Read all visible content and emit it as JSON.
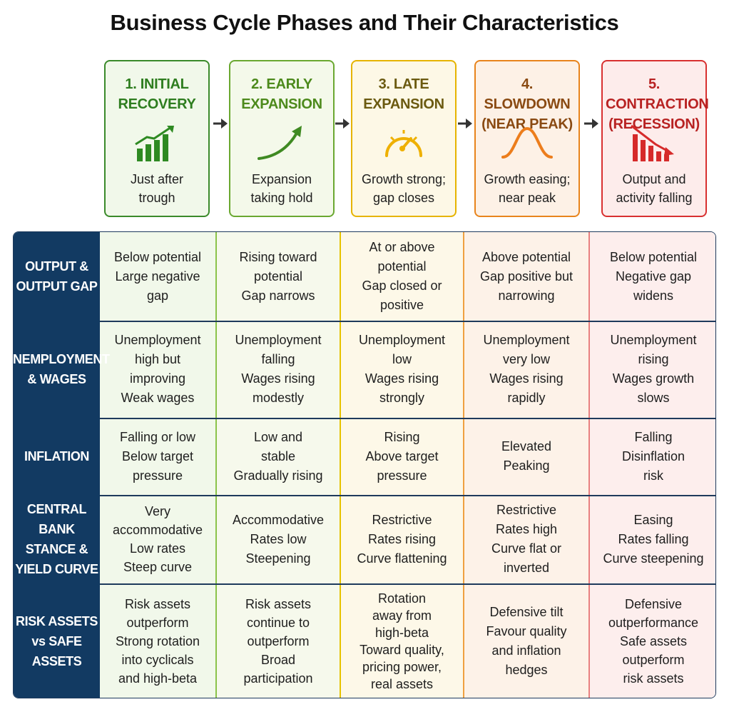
{
  "title": "Business Cycle Phases and Their Characteristics",
  "colors": {
    "green_dark": "#3a8a2a",
    "green_light": "#6aa830",
    "yellow": "#e6b400",
    "orange": "#e8841c",
    "red": "#d83030",
    "navy": "#123a62"
  },
  "phases": [
    {
      "title_line1": "1. INITIAL",
      "title_line2": "RECOVERY",
      "icon": "rising-bars-icon",
      "desc_line1": "Just after",
      "desc_line2": "trough"
    },
    {
      "title_line1": "2. EARLY",
      "title_line2": "EXPANSION",
      "icon": "upward-curve-icon",
      "desc_line1": "Expansion",
      "desc_line2": "taking hold"
    },
    {
      "title_line1": "3. LATE",
      "title_line2": "EXPANSION",
      "icon": "gauge-icon",
      "desc_line1": "Growth strong;",
      "desc_line2": "gap closes"
    },
    {
      "title_line1": "4. SLOWDOWN",
      "title_line2": "(NEAR PEAK)",
      "icon": "bell-curve-icon",
      "desc_line1": "Growth easing;",
      "desc_line2": "near peak"
    },
    {
      "title_line1": "5. CONTRACTION",
      "title_line2": "(RECESSION)",
      "icon": "falling-bars-icon",
      "desc_line1": "Output and",
      "desc_line2": "activity falling"
    }
  ],
  "rows": [
    {
      "header": "OUTPUT &\nOUTPUT GAP",
      "cells": [
        "Below potential\nLarge negative\ngap",
        "Rising toward\npotential\nGap narrows",
        "At or above\npotential\nGap closed or\npositive",
        "Above potential\nGap positive but\nnarrowing",
        "Below potential\nNegative gap\nwidens"
      ]
    },
    {
      "header": "UNEMPLOYMENT\n& WAGES",
      "cells": [
        "Unemployment\nhigh but\nimproving\nWeak wages",
        "Unemployment\nfalling\nWages rising\nmodestly",
        "Unemployment\nlow\nWages rising\nstrongly",
        "Unemployment\nvery low\nWages rising\nrapidly",
        "Unemployment\nrising\nWages growth\nslows"
      ]
    },
    {
      "header": "INFLATION",
      "cells": [
        "Falling or low\nBelow target\npressure",
        "Low and\nstable\nGradually rising",
        "Rising\nAbove target\npressure",
        "Elevated\nPeaking",
        "Falling\nDisinflation\nrisk"
      ]
    },
    {
      "header": "CENTRAL BANK\nSTANCE &\nYIELD CURVE",
      "cells": [
        "Very\naccommodative\nLow rates\nSteep curve",
        "Accommodative\nRates low\nSteepening",
        "Restrictive\nRates rising\nCurve flattening",
        "Restrictive\nRates high\nCurve flat or\ninverted",
        "Easing\nRates falling\nCurve steepening"
      ]
    },
    {
      "header": "RISK ASSETS\nvs SAFE ASSETS",
      "cells": [
        "Risk assets\noutperform\nStrong rotation\ninto cyclicals\nand high-beta",
        "Risk assets\ncontinue to\noutperform\nBroad\nparticipation",
        "Rotation\naway from\nhigh-beta\nToward quality,\npricing power,\nreal assets",
        "Defensive tilt\nFavour quality\nand inflation\nhedges",
        "Defensive\noutperformance\nSafe assets\noutperform\nrisk assets"
      ]
    }
  ]
}
